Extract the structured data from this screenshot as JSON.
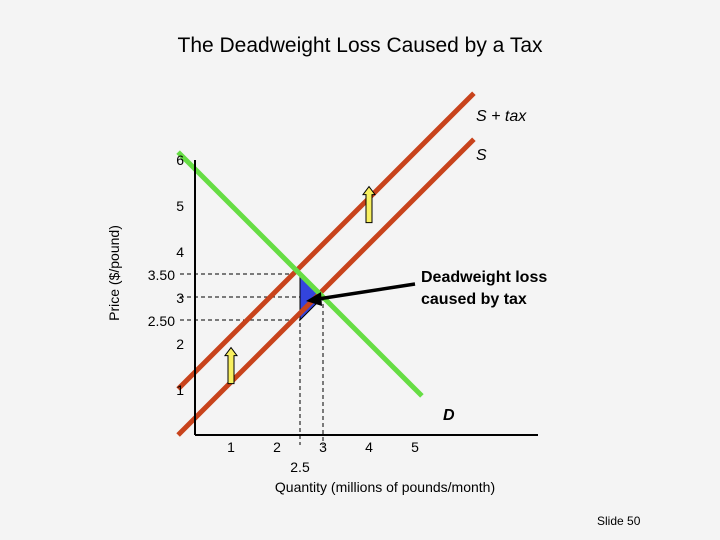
{
  "slide": {
    "title": "The Deadweight Loss Caused by a Tax",
    "number_label": "Slide 50"
  },
  "chart_data": {
    "type": "line",
    "xlabel": "Quantity (millions of pounds/month)",
    "ylabel": "Price ($/pound)",
    "x_ticks": [
      "1",
      "2",
      "3",
      "4",
      "5"
    ],
    "y_ticks": [
      "1",
      "2",
      "3",
      "4",
      "5",
      "6"
    ],
    "extra_x_tick": "2.5",
    "extra_y_ticks": [
      "3.50",
      "2.50"
    ],
    "series": [
      {
        "name": "S + tax",
        "color": "#c8431c",
        "points": [
          [
            -0.15,
            1.0
          ],
          [
            6.28,
            7.43
          ]
        ]
      },
      {
        "name": "S",
        "color": "#c8431c",
        "points": [
          [
            -0.15,
            0.0
          ],
          [
            6.28,
            6.43
          ]
        ]
      },
      {
        "name": "D",
        "color": "#66dd44",
        "points": [
          [
            -0.15,
            6.15
          ],
          [
            5.15,
            0.85
          ]
        ]
      }
    ],
    "annotations": {
      "deadweight_label": "Deadweight loss caused by tax",
      "deadweight_lines": [
        "Deadweight loss",
        "caused by tax"
      ],
      "triangle": [
        [
          2.5,
          3.5
        ],
        [
          2.5,
          2.5
        ],
        [
          3.0,
          3.0
        ]
      ],
      "triangle_color": "#3344dd",
      "arrow_color": "#f8f060",
      "arrow_x": 4.0,
      "arrow_x_lower": 1.0
    }
  }
}
